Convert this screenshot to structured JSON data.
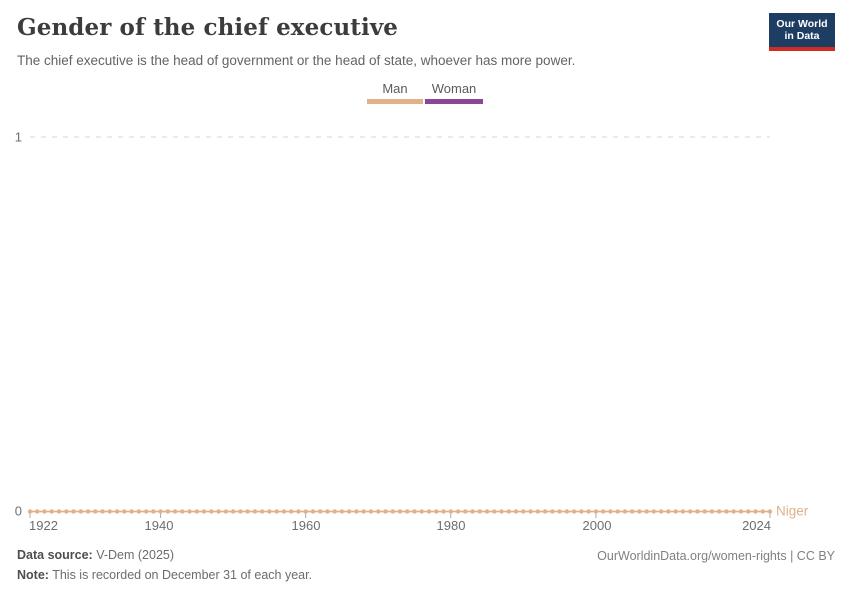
{
  "header": {
    "title": "Gender of the chief executive",
    "subtitle": "The chief executive is the head of government or the head of state, whoever has more power.",
    "logo": {
      "line1": "Our World",
      "line2": "in Data",
      "bg_color": "#1D3D63",
      "accent_color": "#CF2D24"
    }
  },
  "legend": {
    "items": [
      {
        "label": "Man",
        "color": "#E0B18A"
      },
      {
        "label": "Woman",
        "color": "#8C4696"
      }
    ]
  },
  "chart_data": {
    "type": "line",
    "title": "Gender of the chief executive",
    "entity": "Niger",
    "categories_legend": [
      "Man",
      "Woman"
    ],
    "series": [
      {
        "name": "Niger",
        "category": "Man",
        "color": "#E0B18A",
        "x_start": 1922,
        "x_end": 2024,
        "x_step": 1,
        "constant_y": 0,
        "markers": "circle-every-year"
      }
    ],
    "x": {
      "range": [
        1922,
        2024
      ],
      "tick_years": [
        1922,
        1940,
        1960,
        1980,
        2000,
        2024
      ],
      "tick_labels": [
        "1922",
        "1940",
        "1960",
        "1980",
        "2000",
        "2024"
      ]
    },
    "y": {
      "range": [
        0,
        1
      ],
      "tick_labels": [
        "0",
        "1"
      ],
      "gridline_dashed_at": 1
    },
    "grid": "horizontal dashed at y=1",
    "legend_position": "top-center"
  },
  "footer": {
    "source_label": "Data source:",
    "source_value": "V-Dem (2025)",
    "note_label": "Note:",
    "note_value": "This is recorded on December 31 of each year.",
    "link": "OurWorldinData.org/women-rights | CC BY"
  },
  "colors": {
    "man": "#E0B18A",
    "woman": "#8C4696",
    "gridline": "#D5D5D5",
    "axis_tick": "#A8A8A8",
    "axis_text": "#6E6E6E"
  }
}
